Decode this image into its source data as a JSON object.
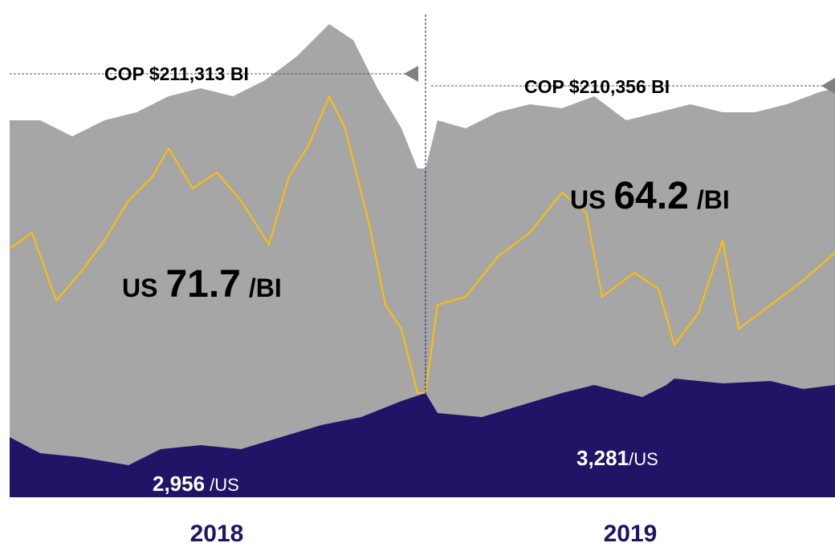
{
  "chart_data": {
    "type": "area_line",
    "xlim": [
      12,
      1040
    ],
    "ylim": [
      0,
      620
    ],
    "categories": [
      "2018",
      "2019"
    ],
    "series": [
      {
        "kind": "area",
        "color": "#a6a6a6",
        "x": [
          12,
          50,
          90,
          130,
          170,
          210,
          250,
          290,
          330,
          370,
          410,
          440,
          470,
          500,
          520,
          530,
          545,
          580,
          620,
          660,
          700,
          740,
          780,
          820,
          860,
          900,
          940,
          980,
          1020,
          1040
        ],
        "values": [
          470,
          470,
          450,
          470,
          480,
          500,
          510,
          500,
          520,
          550,
          590,
          570,
          510,
          460,
          410,
          410,
          470,
          460,
          480,
          490,
          485,
          500,
          470,
          480,
          490,
          480,
          480,
          490,
          505,
          510
        ]
      },
      {
        "kind": "area",
        "color": "#1f1466",
        "x": [
          12,
          50,
          100,
          160,
          200,
          250,
          300,
          350,
          400,
          450,
          500,
          530,
          545,
          600,
          650,
          700,
          740,
          800,
          830,
          840,
          900,
          960,
          1000,
          1040
        ],
        "values": [
          75,
          55,
          50,
          40,
          60,
          65,
          60,
          75,
          90,
          100,
          120,
          130,
          105,
          100,
          115,
          130,
          140,
          125,
          140,
          148,
          142,
          145,
          135,
          140
        ]
      },
      {
        "kind": "line",
        "color": "#ffc000",
        "x": [
          12,
          40,
          70,
          100,
          130,
          160,
          190,
          210,
          240,
          270,
          300,
          335,
          360,
          385,
          410,
          430,
          460,
          480,
          500,
          520,
          530,
          545,
          580,
          620,
          660,
          700,
          730,
          750,
          790,
          820,
          840,
          870,
          900,
          920,
          960,
          1000,
          1040
        ],
        "values": [
          310,
          330,
          245,
          280,
          320,
          370,
          400,
          435,
          385,
          405,
          370,
          315,
          400,
          440,
          500,
          460,
          340,
          240,
          210,
          130,
          130,
          240,
          250,
          300,
          330,
          380,
          355,
          250,
          280,
          260,
          190,
          230,
          320,
          210,
          240,
          270,
          305
        ]
      }
    ],
    "annotations": [
      {
        "text": "COP $211,313 BI"
      },
      {
        "text": "COP $210,356 BI"
      },
      {
        "prefix": "US",
        "number": "71.7",
        "unit": "/BI"
      },
      {
        "prefix": "US",
        "number": "64.2",
        "unit": "/BI"
      },
      {
        "number": "2,956",
        "unit": "/US"
      },
      {
        "number": "3,281",
        "unit": "/US"
      }
    ]
  }
}
